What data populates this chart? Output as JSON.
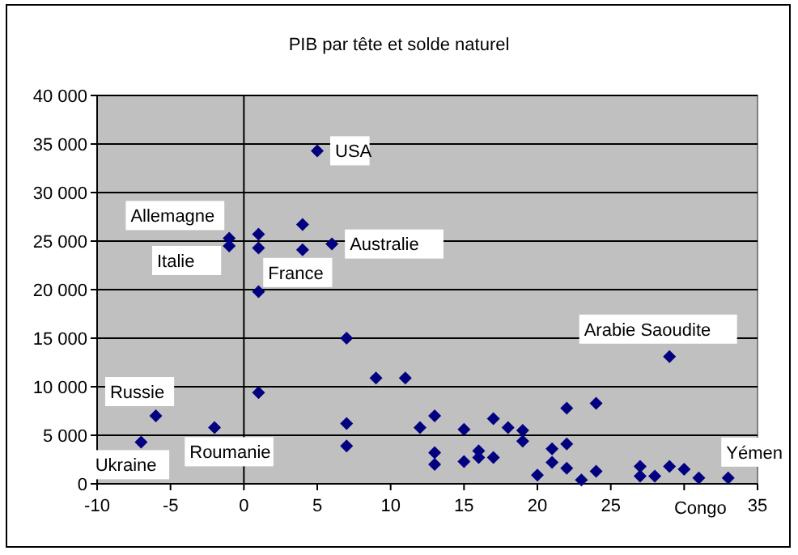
{
  "chart_data": {
    "type": "scatter",
    "title": "PIB par tête et solde naturel",
    "x": [
      5,
      -1,
      -1,
      1,
      1,
      4,
      4,
      6,
      1,
      7,
      9,
      11,
      1,
      -6,
      -2,
      -7,
      7,
      7,
      29,
      12,
      13,
      13,
      13,
      15,
      15,
      16,
      16,
      17,
      17,
      18,
      19,
      19,
      20,
      21,
      21,
      22,
      22,
      22,
      23,
      24,
      24,
      27,
      27,
      28,
      29,
      30,
      31,
      33
    ],
    "values": [
      34300,
      25300,
      24500,
      25700,
      24300,
      26700,
      24100,
      24700,
      19800,
      15000,
      10900,
      10900,
      9400,
      7000,
      5800,
      4300,
      6200,
      3900,
      13100,
      5800,
      7000,
      3200,
      2000,
      5600,
      2300,
      3400,
      2700,
      6700,
      2700,
      5800,
      5500,
      4400,
      900,
      3600,
      2200,
      7800,
      4100,
      1600,
      400,
      8300,
      1300,
      1800,
      800,
      800,
      1800,
      1500,
      600,
      600
    ],
    "color": "#000080",
    "marker": "diamond",
    "grid": "y",
    "xlim": [
      -10,
      35
    ],
    "xticks": [
      -10,
      -5,
      0,
      5,
      10,
      15,
      20,
      25,
      {
        "value": 30,
        "label": null
      },
      35
    ],
    "ylim": [
      0,
      40000
    ],
    "yticks": [
      0,
      {
        "value": 5000,
        "label": "5 000"
      },
      {
        "value": 10000,
        "label": "10 000"
      },
      {
        "value": 15000,
        "label": "15 000"
      },
      {
        "value": 20000,
        "label": "20 000"
      },
      {
        "value": 25000,
        "label": "25 000"
      },
      {
        "value": 30000,
        "label": "30 000"
      },
      {
        "value": 35000,
        "label": "35 000"
      },
      {
        "value": 40000,
        "label": "40 000"
      }
    ],
    "ref_lines": [
      {
        "axis": "x",
        "value": 0,
        "color": "#000000"
      }
    ],
    "annotations": [
      {
        "text": "USA",
        "x": 5,
        "y": 34300
      },
      {
        "text": "Allemagne",
        "x": -1,
        "y": 25300
      },
      {
        "text": "Italie",
        "x": -1,
        "y": 24500
      },
      {
        "text": "France",
        "x": 4,
        "y": 24100
      },
      {
        "text": "Australie",
        "x": 6,
        "y": 24700
      },
      {
        "text": "Arabie Saoudite",
        "x": 29,
        "y": 13100
      },
      {
        "text": "Russie",
        "x": -6,
        "y": 7000
      },
      {
        "text": "Roumanie",
        "x": -2,
        "y": 5800
      },
      {
        "text": "Ukraine",
        "x": -7,
        "y": 4300
      },
      {
        "text": "Congo",
        "x": 31,
        "y": 600
      },
      {
        "text": "Yémen",
        "x": 33,
        "y": 600
      }
    ]
  }
}
